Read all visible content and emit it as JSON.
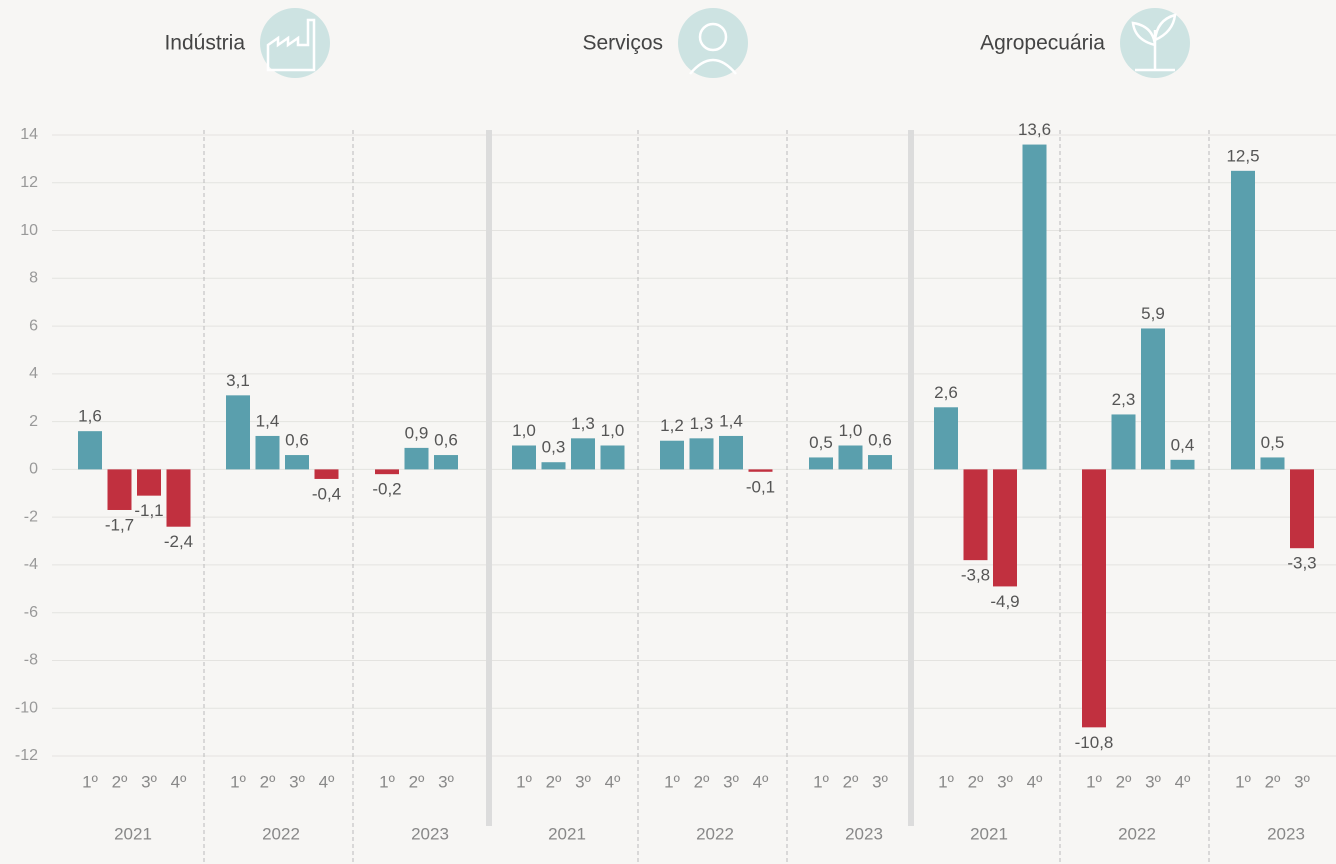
{
  "chart_data": [
    {
      "type": "bar",
      "title": "Indústria",
      "groups": [
        {
          "name": "2021",
          "categories": [
            "1º",
            "2º",
            "3º",
            "4º"
          ],
          "values": [
            1.6,
            -1.7,
            -1.1,
            -2.4
          ],
          "value_labels": [
            "1,6",
            "-1,7",
            "-1,1",
            "-2,4"
          ]
        },
        {
          "name": "2022",
          "categories": [
            "1º",
            "2º",
            "3º",
            "4º"
          ],
          "values": [
            3.1,
            1.4,
            0.6,
            -0.4
          ],
          "value_labels": [
            "3,1",
            "1,4",
            "0,6",
            "-0,4"
          ]
        },
        {
          "name": "2023",
          "categories": [
            "1º",
            "2º",
            "3º"
          ],
          "values": [
            -0.2,
            0.9,
            0.6
          ],
          "value_labels": [
            "-0,2",
            "0,9",
            "0,6"
          ]
        }
      ],
      "ylim": [
        -12,
        14
      ],
      "yticks": [
        -12,
        -10,
        -8,
        -6,
        -4,
        -2,
        0,
        2,
        4,
        6,
        8,
        10,
        12,
        14
      ],
      "grid": true,
      "colors": {
        "positive": "#5a9fad",
        "negative": "#c1303f"
      }
    },
    {
      "type": "bar",
      "title": "Serviços",
      "groups": [
        {
          "name": "2021",
          "categories": [
            "1º",
            "2º",
            "3º",
            "4º"
          ],
          "values": [
            1.0,
            0.3,
            1.3,
            1.0
          ],
          "value_labels": [
            "1,0",
            "0,3",
            "1,3",
            "1,0"
          ]
        },
        {
          "name": "2022",
          "categories": [
            "1º",
            "2º",
            "3º",
            "4º"
          ],
          "values": [
            1.2,
            1.3,
            1.4,
            -0.1
          ],
          "value_labels": [
            "1,2",
            "1,3",
            "1,4",
            "-0,1"
          ]
        },
        {
          "name": "2023",
          "categories": [
            "1º",
            "2º",
            "3º"
          ],
          "values": [
            0.5,
            1.0,
            0.6
          ],
          "value_labels": [
            "0,5",
            "1,0",
            "0,6"
          ]
        }
      ],
      "ylim": [
        -12,
        14
      ],
      "colors": {
        "positive": "#5a9fad",
        "negative": "#c1303f"
      }
    },
    {
      "type": "bar",
      "title": "Agropecuária",
      "groups": [
        {
          "name": "2021",
          "categories": [
            "1º",
            "2º",
            "3º",
            "4º"
          ],
          "values": [
            2.6,
            -3.8,
            -4.9,
            13.6
          ],
          "value_labels": [
            "2,6",
            "-3,8",
            "-4,9",
            "13,6"
          ]
        },
        {
          "name": "2022",
          "categories": [
            "1º",
            "2º",
            "3º",
            "4º"
          ],
          "values": [
            -10.8,
            2.3,
            5.9,
            0.4
          ],
          "value_labels": [
            "-10,8",
            "2,3",
            "5,9",
            "0,4"
          ]
        },
        {
          "name": "2023",
          "categories": [
            "1º",
            "2º",
            "3º"
          ],
          "values": [
            12.5,
            0.5,
            -3.3
          ],
          "value_labels": [
            "12,5",
            "0,5",
            "-3,3"
          ]
        }
      ],
      "ylim": [
        -12,
        14
      ],
      "colors": {
        "positive": "#5a9fad",
        "negative": "#c1303f"
      }
    }
  ]
}
